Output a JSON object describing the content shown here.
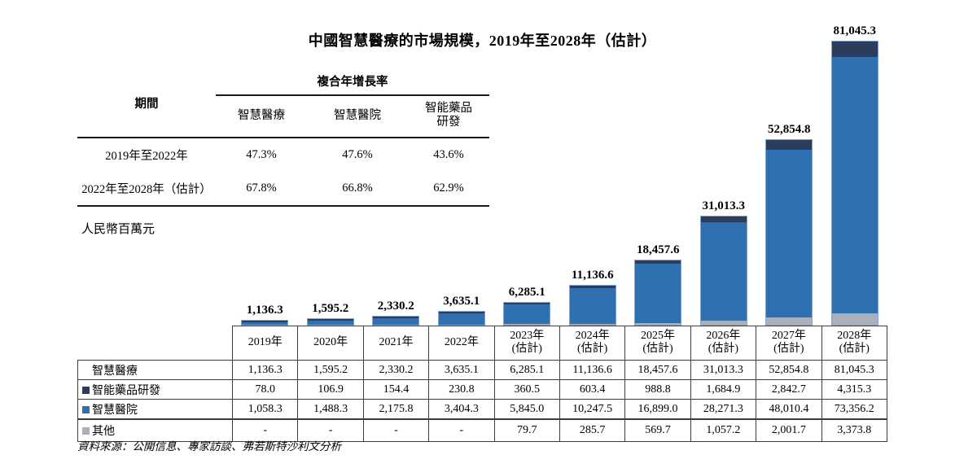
{
  "title": "中國智慧醫療的市場規模，2019年至2028年（估計）",
  "cagr_table": {
    "span_header": "複合年增長率",
    "period_label": "期間",
    "columns": [
      "智慧醫療",
      "智慧醫院",
      "智能藥品\n研發"
    ],
    "rows": [
      {
        "period": "2019年至2022年",
        "values": [
          "47.3%",
          "47.6%",
          "43.6%"
        ]
      },
      {
        "period": "2022年至2028年（估計）",
        "values": [
          "67.8%",
          "66.8%",
          "62.9%"
        ]
      }
    ]
  },
  "y_axis_label": "人民幣百萬元",
  "chart_data": {
    "type": "bar",
    "stacked": true,
    "title": "中國智慧醫療的市場規模，2019年至2028年（估計）",
    "ylabel": "人民幣百萬元",
    "ylim": [
      0,
      81045.3
    ],
    "grid": false,
    "categories": [
      "2019年",
      "2020年",
      "2021年",
      "2022年",
      "2023年\n(估計)",
      "2024年\n(估計)",
      "2025年\n(估計)",
      "2026年\n(估計)",
      "2027年\n(估計)",
      "2028年\n(估計)"
    ],
    "totals": [
      1136.3,
      1595.2,
      2330.2,
      3635.1,
      6285.1,
      11136.6,
      18457.6,
      31013.3,
      52854.8,
      81045.3
    ],
    "total_labels": [
      "1,136.3",
      "1,595.2",
      "2,330.2",
      "3,635.1",
      "6,285.1",
      "11,136.6",
      "18,457.6",
      "31,013.3",
      "52,854.8",
      "81,045.3"
    ],
    "series": [
      {
        "name": "智能藥品研發",
        "key": "pharma-rnd",
        "color": "#2b3c5c",
        "values": [
          78.0,
          106.9,
          154.4,
          230.8,
          360.5,
          603.4,
          988.8,
          1684.9,
          2842.7,
          4315.3
        ]
      },
      {
        "name": "智慧醫院",
        "key": "smart-hospital",
        "color": "#2e70b0",
        "values": [
          1058.3,
          1488.3,
          2175.8,
          3404.3,
          5845.0,
          10247.5,
          16899.0,
          28271.3,
          48010.4,
          73356.2
        ]
      },
      {
        "name": "其他",
        "key": "others",
        "color": "#a8b0bc",
        "values": [
          0,
          0,
          0,
          0,
          79.7,
          285.7,
          569.7,
          1057.2,
          2001.7,
          3373.8
        ]
      }
    ]
  },
  "data_table": {
    "col_headers": [
      "2019年",
      "2020年",
      "2021年",
      "2022年",
      "2023年\n(估計)",
      "2024年\n(估計)",
      "2025年\n(估計)",
      "2026年\n(估計)",
      "2027年\n(估計)",
      "2028年\n(估計)"
    ],
    "rows": [
      {
        "label": "智慧醫療",
        "marker": null,
        "cells": [
          "1,136.3",
          "1,595.2",
          "2,330.2",
          "3,635.1",
          "6,285.1",
          "11,136.6",
          "18,457.6",
          "31,013.3",
          "52,854.8",
          "81,045.3"
        ]
      },
      {
        "label": "智能藥品研發",
        "marker": "#2b3c5c",
        "cells": [
          "78.0",
          "106.9",
          "154.4",
          "230.8",
          "360.5",
          "603.4",
          "988.8",
          "1,684.9",
          "2,842.7",
          "4,315.3"
        ]
      },
      {
        "label": "智慧醫院",
        "marker": "#2e70b0",
        "cells": [
          "1,058.3",
          "1,488.3",
          "2,175.8",
          "3,404.3",
          "5,845.0",
          "10,247.5",
          "16,899.0",
          "28,271.3",
          "48,010.4",
          "73,356.2"
        ]
      },
      {
        "label": "其他",
        "marker": "#a8b0bc",
        "cells": [
          "-",
          "-",
          "-",
          "-",
          "79.7",
          "285.7",
          "569.7",
          "1,057.2",
          "2,001.7",
          "3,373.8"
        ]
      }
    ]
  },
  "source": "資料來源：公開信息、專家訪談、弗若斯特沙利文分析"
}
